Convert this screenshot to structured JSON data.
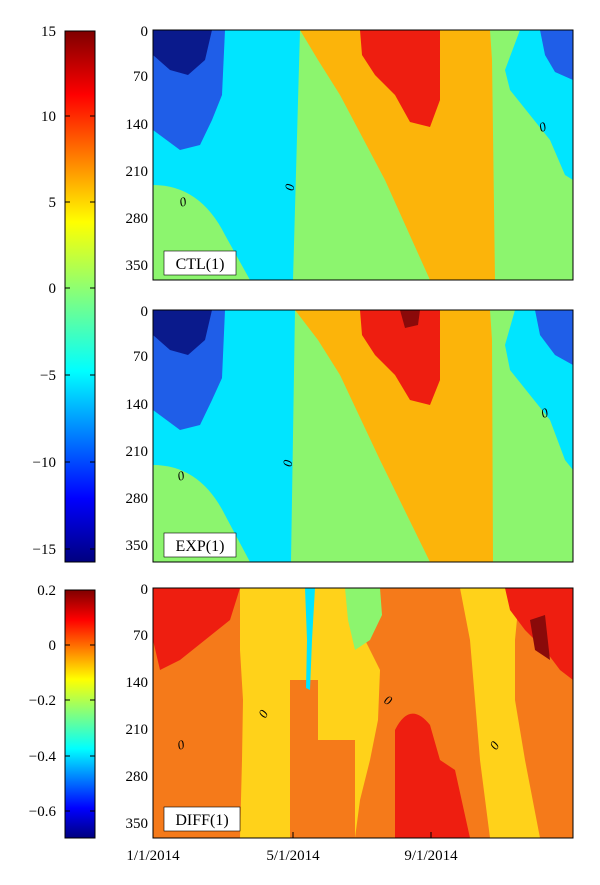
{
  "chart_data": [
    {
      "type": "heatmap",
      "title": "",
      "panel_label": "CTL(1)",
      "xlabel": "",
      "ylabel": "",
      "ytick_labels": [
        "0",
        "70",
        "140",
        "210",
        "280",
        "350"
      ],
      "y_range": [
        0,
        370
      ],
      "y_reversed": true,
      "contour_labels": [
        "0",
        "0",
        "0"
      ],
      "colorbar": {
        "ticks": [
          "15",
          "10",
          "5",
          "0",
          "−5",
          "−10",
          "−15"
        ],
        "range": [
          -15,
          15
        ],
        "colormap": "jet"
      }
    },
    {
      "type": "heatmap",
      "title": "",
      "panel_label": "EXP(1)",
      "xlabel": "",
      "ylabel": "",
      "ytick_labels": [
        "0",
        "70",
        "140",
        "210",
        "280",
        "350"
      ],
      "y_range": [
        0,
        370
      ],
      "y_reversed": true,
      "contour_labels": [
        "0",
        "0",
        "0"
      ],
      "colorbar": "shared with CTL(1)"
    },
    {
      "type": "heatmap",
      "title": "",
      "panel_label": "DIFF(1)",
      "xlabel": "",
      "ylabel": "",
      "ytick_labels": [
        "0",
        "70",
        "140",
        "210",
        "280",
        "350"
      ],
      "xtick_labels": [
        "1/1/2014",
        "5/1/2014",
        "9/1/2014"
      ],
      "x_range": [
        "2014-01-01",
        "2014-12-31"
      ],
      "y_range": [
        0,
        370
      ],
      "y_reversed": true,
      "contour_labels": [
        "0",
        "0",
        "0",
        "0"
      ],
      "colorbar": {
        "ticks": [
          "0.2",
          "0",
          "−0.2",
          "−0.4",
          "−0.6"
        ],
        "range": [
          -0.7,
          0.2
        ],
        "colormap": "jet"
      }
    }
  ],
  "colors": {
    "darkblue": "#0a1a8c",
    "blue": "#1f5ee8",
    "cyan": "#00e5ff",
    "green": "#8cf56e",
    "yellow": "#ffd21a",
    "orange": "#fcb40a",
    "orangered": "#f57a1a",
    "red": "#ee1e10",
    "darkred": "#8a0a0a"
  }
}
